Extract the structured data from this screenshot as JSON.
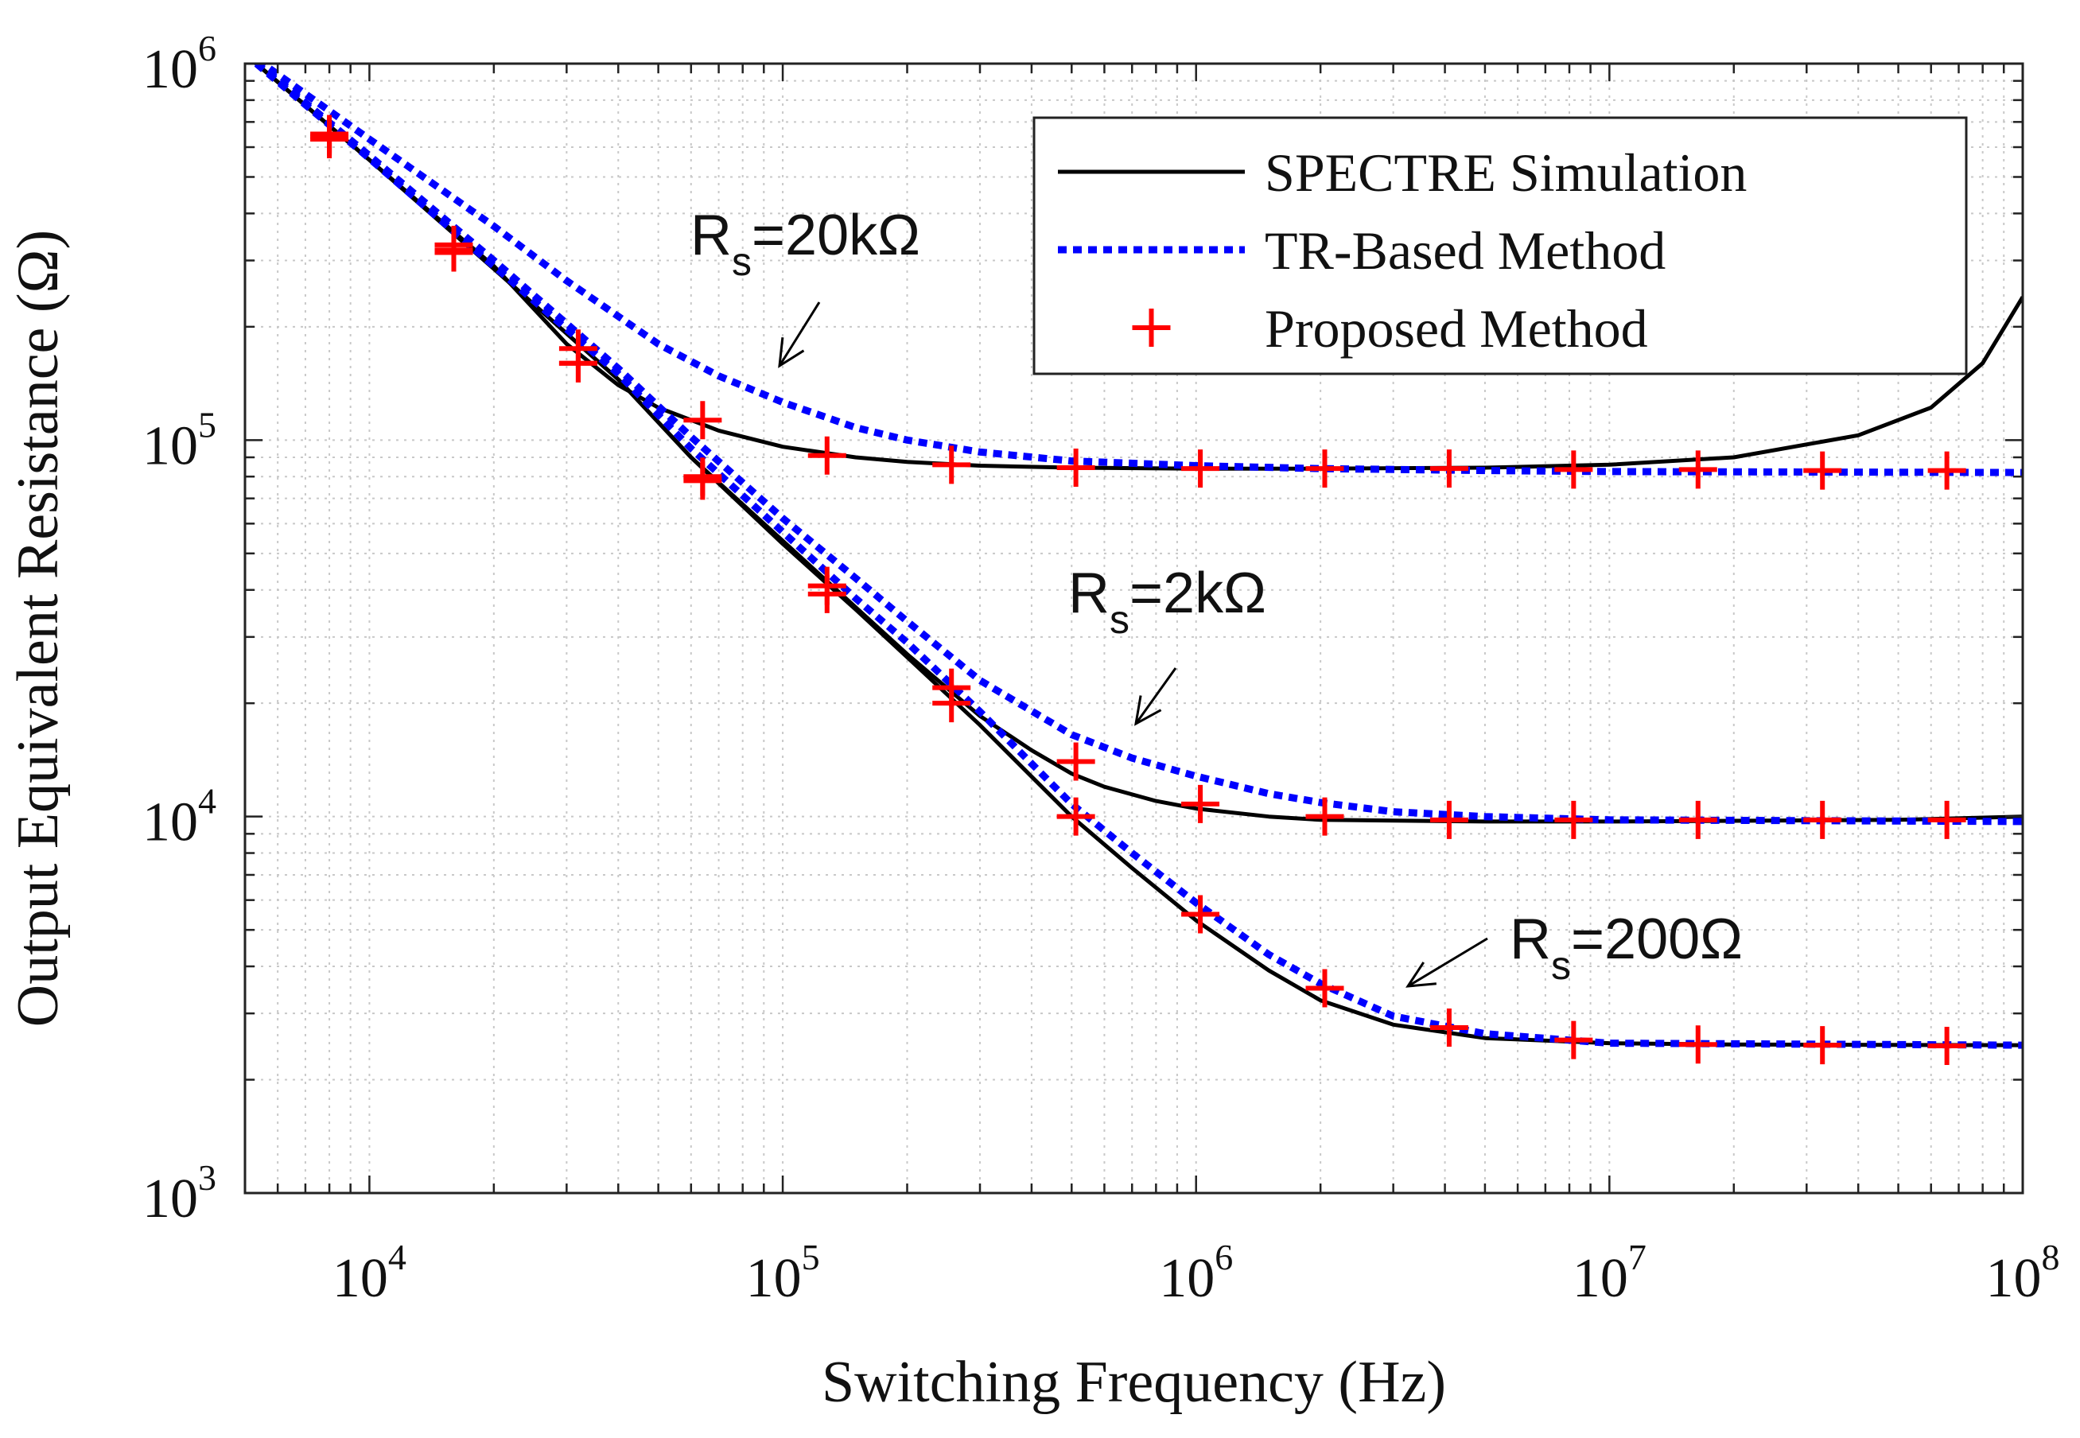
{
  "chart_data": {
    "type": "line",
    "xscale": "log",
    "yscale": "log",
    "xlabel": "Switching Frequency (Hz)",
    "ylabel": "Output Equivalent Resistance (Ω)",
    "xlim": [
      5000,
      100000000
    ],
    "ylim": [
      1000,
      1000000
    ],
    "grid": true,
    "xticks": [
      {
        "base": "10",
        "exp": "4",
        "value": 10000
      },
      {
        "base": "10",
        "exp": "5",
        "value": 100000
      },
      {
        "base": "10",
        "exp": "6",
        "value": 1000000
      },
      {
        "base": "10",
        "exp": "7",
        "value": 10000000
      },
      {
        "base": "10",
        "exp": "8",
        "value": 100000000
      }
    ],
    "yticks": [
      {
        "base": "10",
        "exp": "3",
        "value": 1000
      },
      {
        "base": "10",
        "exp": "4",
        "value": 10000
      },
      {
        "base": "10",
        "exp": "5",
        "value": 100000
      },
      {
        "base": "10",
        "exp": "6",
        "value": 1000000
      }
    ],
    "legend": {
      "position": "top-right",
      "entries": [
        {
          "label": "SPECTRE Simulation",
          "style": "solid",
          "color": "#000000"
        },
        {
          "label": "TR-Based Method",
          "style": "dotted",
          "color": "#0000ff"
        },
        {
          "label": "Proposed Method",
          "style": "plus-marker",
          "color": "#ff0000"
        }
      ]
    },
    "annotations": [
      {
        "main": "R",
        "sub": "s",
        "rest": "=20kΩ",
        "arrow_from": [
          100000,
          170000
        ],
        "arrow_to": [
          95000,
          160000
        ]
      },
      {
        "main": "R",
        "sub": "s",
        "rest": "=2kΩ",
        "arrow_from": [
          800000,
          24000
        ],
        "arrow_to": [
          700000,
          18000
        ]
      },
      {
        "main": "R",
        "sub": "s",
        "rest": "=200Ω",
        "arrow_from": [
          4000000,
          4400000
        ],
        "arrow_to": [
          3000000,
          3300
        ]
      }
    ],
    "series": [
      {
        "name": "SPECTRE Simulation (Rs=20kΩ)",
        "style": "solid",
        "color": "#000000",
        "x": [
          5000,
          10000,
          20000,
          30000,
          40000,
          50000,
          70000,
          100000,
          150000,
          200000,
          300000,
          500000,
          1000000,
          2000000,
          5000000,
          10000000,
          20000000,
          40000000,
          60000000,
          80000000,
          100000000
        ],
        "y": [
          1060000,
          555000,
          290000,
          180000,
          140000,
          122000,
          106000,
          96000,
          90000,
          87500,
          85500,
          84500,
          84000,
          84000,
          84500,
          86000,
          90000,
          103000,
          122000,
          160000,
          240000
        ]
      },
      {
        "name": "SPECTRE Simulation (Rs=2kΩ)",
        "style": "solid",
        "color": "#000000",
        "x": [
          5000,
          10000,
          20000,
          40000,
          60000,
          100000,
          150000,
          200000,
          300000,
          400000,
          500000,
          600000,
          800000,
          1000000,
          1500000,
          2000000,
          5000000,
          10000000,
          50000000,
          100000000
        ],
        "y": [
          1060000,
          555000,
          285000,
          145000,
          90000,
          54000,
          36000,
          27000,
          18500,
          15000,
          13000,
          12000,
          11000,
          10500,
          10000,
          9800,
          9700,
          9700,
          9800,
          10000
        ]
      },
      {
        "name": "SPECTRE Simulation (Rs=200Ω)",
        "style": "solid",
        "color": "#000000",
        "x": [
          5000,
          10000,
          20000,
          40000,
          60000,
          100000,
          150000,
          200000,
          300000,
          500000,
          700000,
          1000000,
          1500000,
          2000000,
          3000000,
          5000000,
          10000000,
          20000000,
          100000000
        ],
        "y": [
          1060000,
          555000,
          285000,
          145000,
          90000,
          53000,
          35500,
          26500,
          17500,
          10000,
          7300,
          5300,
          3900,
          3250,
          2800,
          2580,
          2500,
          2480,
          2470
        ]
      },
      {
        "name": "TR-Based Method (Rs=20kΩ)",
        "style": "dotted",
        "color": "#0000ff",
        "x": [
          5000,
          10000,
          20000,
          30000,
          50000,
          70000,
          100000,
          150000,
          200000,
          300000,
          500000,
          1000000,
          2000000,
          5000000,
          10000000,
          100000000
        ],
        "y": [
          1080000,
          630000,
          370000,
          265000,
          180000,
          148000,
          126000,
          108000,
          100000,
          93000,
          88000,
          85500,
          84000,
          83000,
          82500,
          82000
        ]
      },
      {
        "name": "TR-Based Method (Rs=2kΩ)",
        "style": "dotted",
        "color": "#0000ff",
        "x": [
          5000,
          10000,
          20000,
          40000,
          60000,
          100000,
          150000,
          200000,
          300000,
          500000,
          700000,
          1000000,
          1500000,
          2000000,
          3000000,
          5000000,
          10000000,
          100000000
        ],
        "y": [
          1070000,
          570000,
          300000,
          155000,
          102000,
          62000,
          43000,
          33000,
          23000,
          16500,
          14300,
          12800,
          11500,
          10900,
          10300,
          10000,
          9800,
          9700
        ]
      },
      {
        "name": "TR-Based Method (Rs=200Ω)",
        "style": "dotted",
        "color": "#0000ff",
        "x": [
          5000,
          10000,
          20000,
          40000,
          60000,
          100000,
          150000,
          200000,
          300000,
          500000,
          700000,
          1000000,
          1500000,
          2000000,
          3000000,
          5000000,
          10000000,
          100000000
        ],
        "y": [
          1060000,
          560000,
          290000,
          150000,
          95000,
          57000,
          38000,
          29000,
          19000,
          10800,
          8000,
          5900,
          4300,
          3600,
          2950,
          2650,
          2500,
          2470
        ]
      },
      {
        "name": "Proposed Method (Rs=20kΩ)",
        "style": "plus-marker",
        "color": "#ff0000",
        "x": [
          8000,
          16000,
          32000,
          64000,
          128000,
          256000,
          512000,
          1024000,
          2048000,
          4096000,
          8192000,
          16384000,
          32768000,
          65536000
        ],
        "y": [
          640000,
          330000,
          175000,
          113000,
          91000,
          86000,
          84500,
          84000,
          84000,
          84000,
          83500,
          83500,
          83000,
          83000
        ]
      },
      {
        "name": "Proposed Method (Rs=2kΩ)",
        "style": "plus-marker",
        "color": "#ff0000",
        "x": [
          8000,
          16000,
          32000,
          64000,
          128000,
          256000,
          512000,
          1024000,
          2048000,
          4096000,
          8192000,
          16384000,
          32768000,
          65536000
        ],
        "y": [
          650000,
          315000,
          160000,
          80000,
          41000,
          22000,
          14000,
          10800,
          10000,
          9800,
          9800,
          9800,
          9800,
          9800
        ]
      },
      {
        "name": "Proposed Method (Rs=200Ω)",
        "style": "plus-marker",
        "color": "#ff0000",
        "x": [
          8000,
          16000,
          32000,
          64000,
          128000,
          256000,
          512000,
          1024000,
          2048000,
          4096000,
          8192000,
          16384000,
          32768000,
          65536000
        ],
        "y": [
          630000,
          320000,
          160000,
          78000,
          39000,
          20000,
          10000,
          5500,
          3500,
          2750,
          2550,
          2480,
          2470,
          2460
        ]
      }
    ]
  }
}
